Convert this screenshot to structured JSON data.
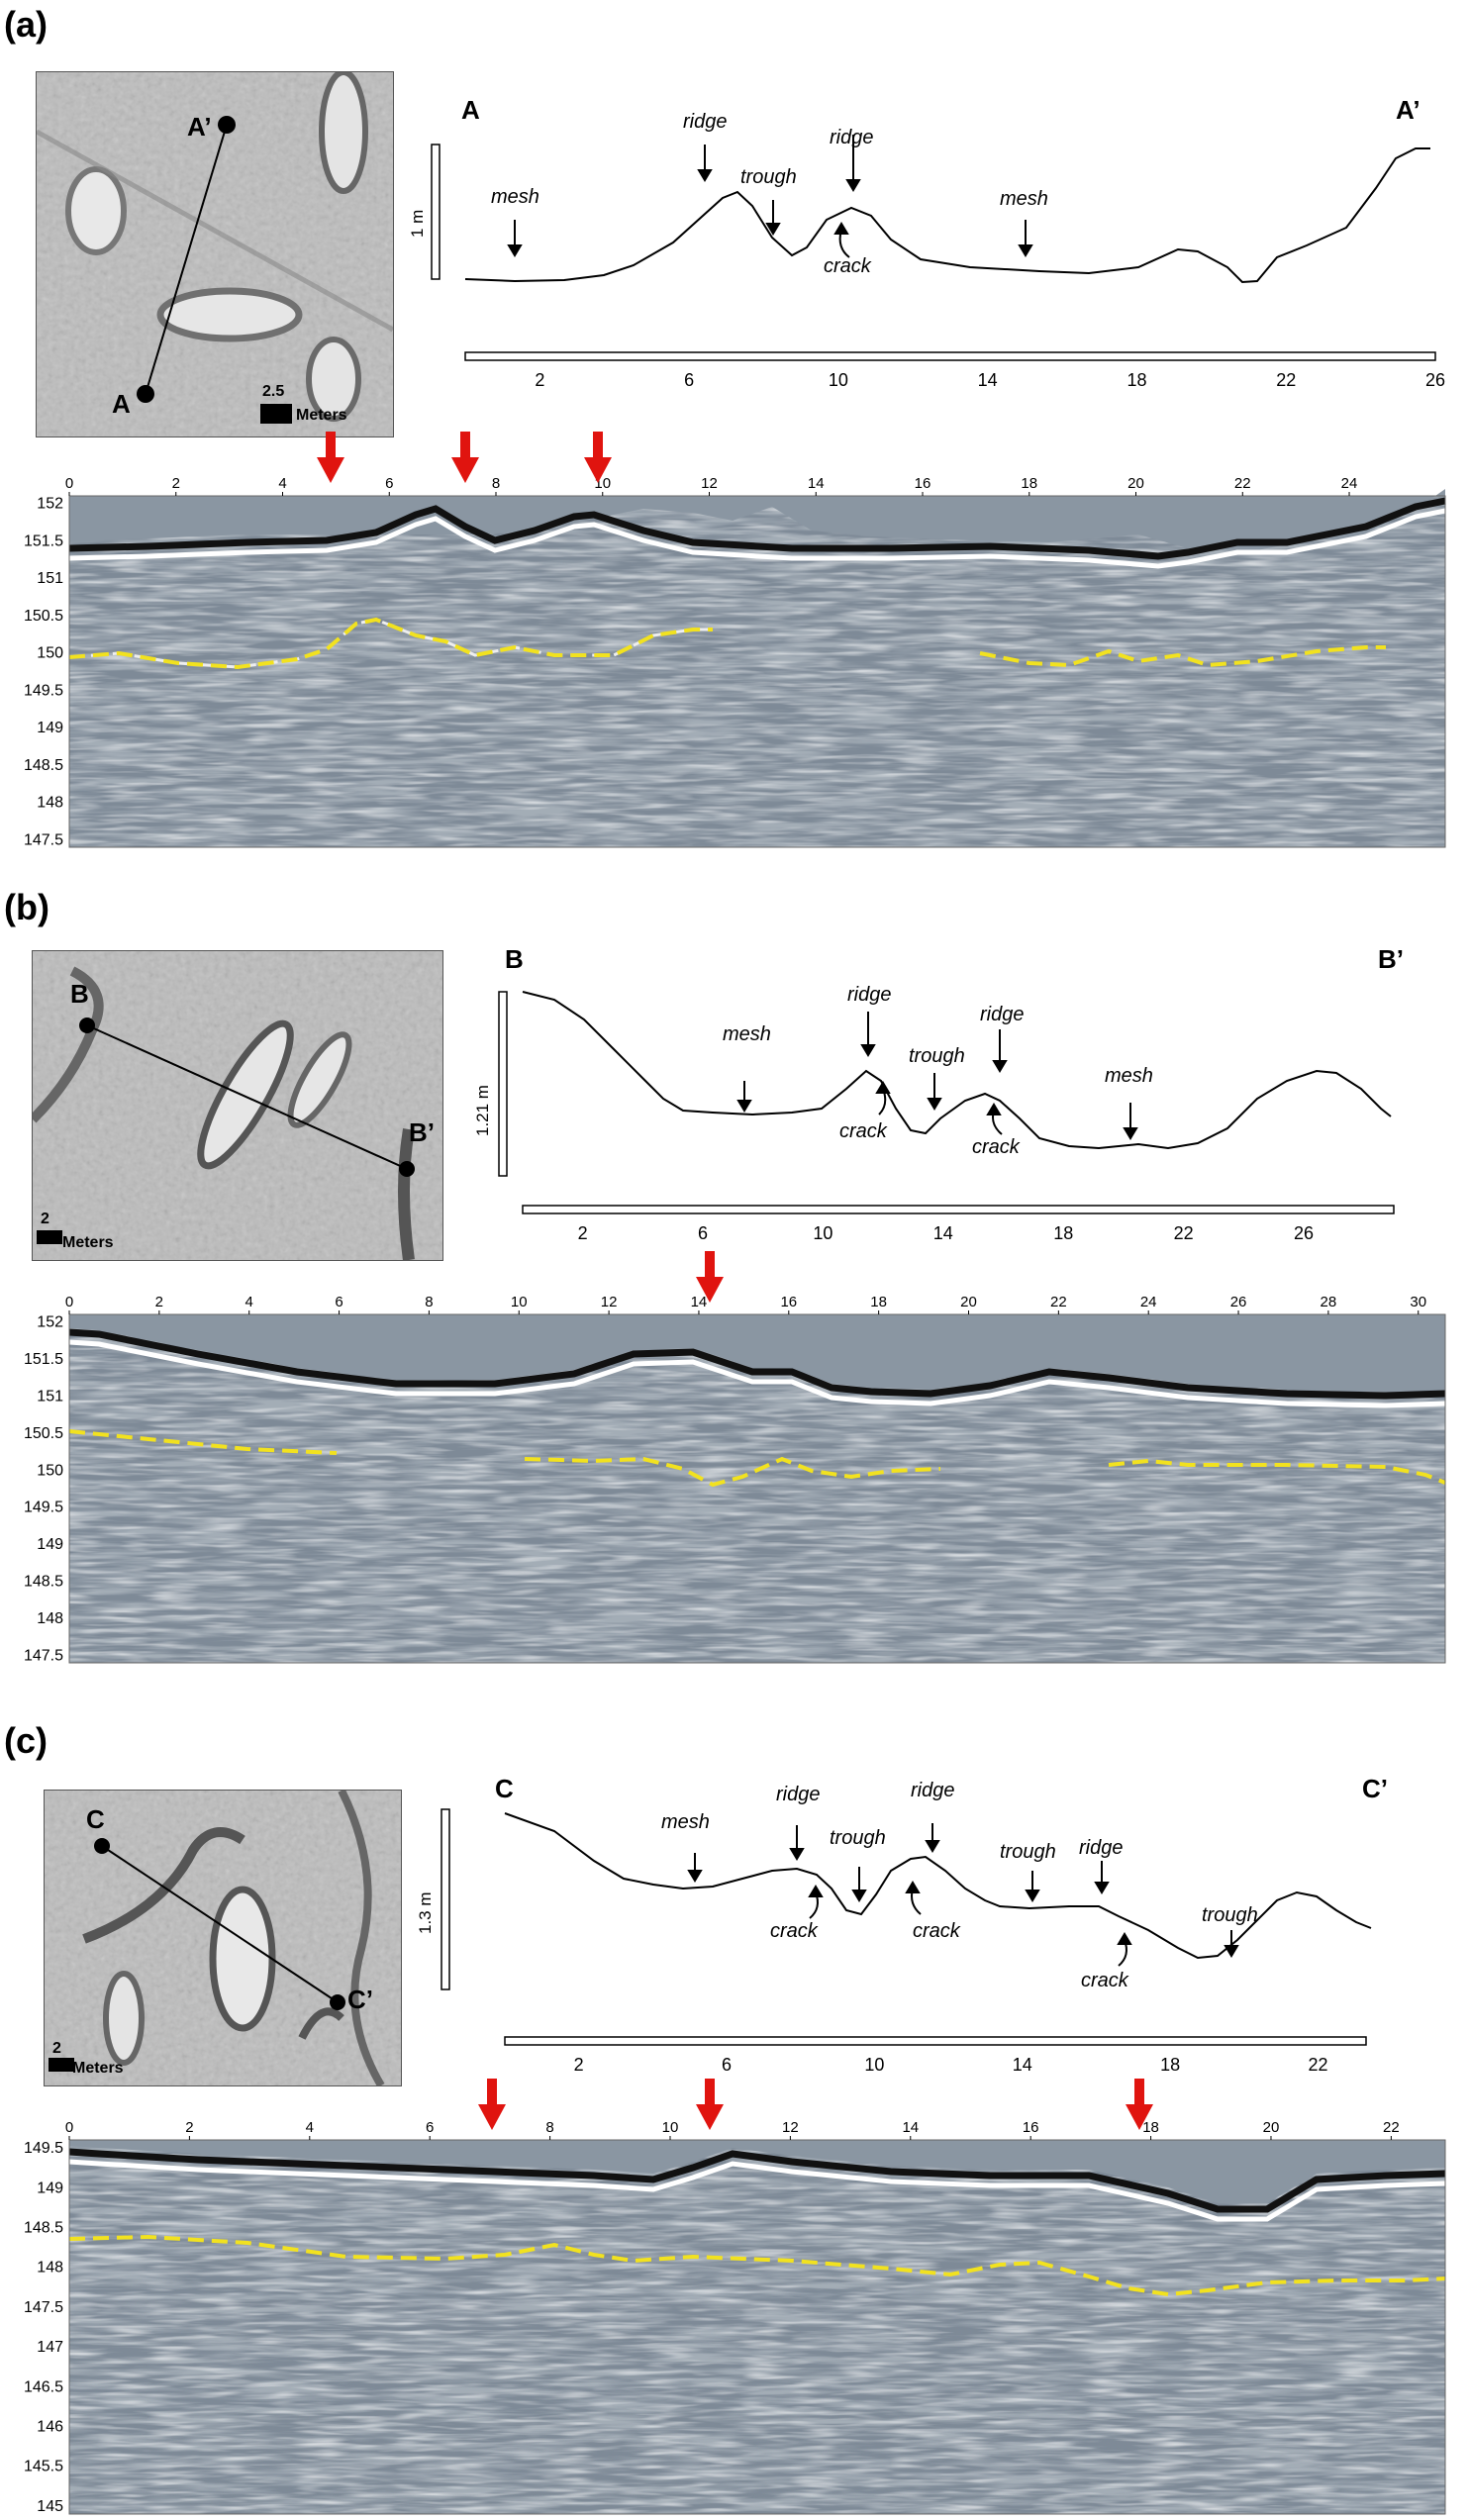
{
  "panels": [
    {
      "id": "a",
      "label": "(a)",
      "start": "A",
      "end": "A’",
      "scale_num": "2.5",
      "scale_unit": "Meters",
      "vscale": "1 m",
      "annotations": {
        "ridge1": "ridge",
        "ridge2": "ridge",
        "trough1": "trough",
        "mesh1": "mesh",
        "mesh2": "mesh",
        "crack1": "crack"
      },
      "profile_ticks": [
        "2",
        "6",
        "10",
        "14",
        "18",
        "22",
        "26"
      ],
      "gpr_x_ticks": [
        "0",
        "2",
        "4",
        "6",
        "8",
        "10",
        "12",
        "14",
        "16",
        "18",
        "20",
        "22",
        "24"
      ],
      "gpr_y_ticks": [
        "152",
        "151.5",
        "151",
        "150.5",
        "150",
        "149.5",
        "149",
        "148.5",
        "148",
        "147.5"
      ]
    },
    {
      "id": "b",
      "label": "(b)",
      "start": "B",
      "end": "B’",
      "scale_num": "2",
      "scale_unit": "Meters",
      "vscale": "1.21 m",
      "annotations": {
        "mesh1": "mesh",
        "ridge1": "ridge",
        "trough1": "trough",
        "ridge2": "ridge",
        "mesh2": "mesh",
        "crack1": "crack",
        "crack2": "crack"
      },
      "profile_ticks": [
        "2",
        "6",
        "10",
        "14",
        "18",
        "22",
        "26"
      ],
      "gpr_x_ticks": [
        "0",
        "2",
        "4",
        "6",
        "8",
        "10",
        "12",
        "14",
        "16",
        "18",
        "20",
        "22",
        "24",
        "26",
        "28",
        "30"
      ],
      "gpr_y_ticks": [
        "152",
        "151.5",
        "151",
        "150.5",
        "150",
        "149.5",
        "149",
        "148.5",
        "148",
        "147.5"
      ]
    },
    {
      "id": "c",
      "label": "(c)",
      "start": "C",
      "end": "C’",
      "scale_num": "2",
      "scale_unit": "Meters",
      "vscale": "1.3 m",
      "annotations": {
        "mesh1": "mesh",
        "ridge1": "ridge",
        "trough1": "trough",
        "ridge2": "ridge",
        "trough2": "trough",
        "ridge3": "ridge",
        "trough3": "trough",
        "crack1": "crack",
        "crack2": "crack",
        "crack3": "crack"
      },
      "profile_ticks": [
        "2",
        "6",
        "10",
        "14",
        "18",
        "22"
      ],
      "gpr_x_ticks": [
        "0",
        "2",
        "4",
        "6",
        "8",
        "10",
        "12",
        "14",
        "16",
        "18",
        "20",
        "22"
      ],
      "gpr_y_ticks": [
        "149.5",
        "149",
        "148.5",
        "148",
        "147.5",
        "147",
        "146.5",
        "146",
        "145.5",
        "145"
      ]
    }
  ]
}
